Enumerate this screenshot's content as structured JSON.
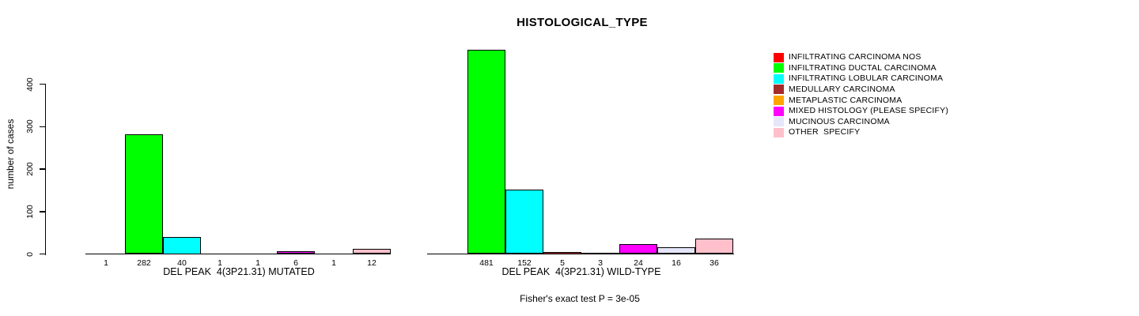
{
  "title": "HISTOLOGICAL_TYPE",
  "chart_data": {
    "type": "bar",
    "title": "HISTOLOGICAL_TYPE",
    "ylabel": "number of cases",
    "ylim": [
      0,
      400
    ],
    "yticks": [
      0,
      100,
      200,
      300,
      400
    ],
    "grid": false,
    "legend_position": "right",
    "categories": [
      "INFILTRATING CARCINOMA NOS",
      "INFILTRATING DUCTAL CARCINOMA",
      "INFILTRATING LOBULAR CARCINOMA",
      "MEDULLARY CARCINOMA",
      "METAPLASTIC CARCINOMA",
      "MIXED HISTOLOGY (PLEASE SPECIFY)",
      "MUCINOUS CARCINOMA",
      "OTHER  SPECIFY"
    ],
    "series": [
      {
        "name": "DEL PEAK  4(3P21.31) MUTATED",
        "values": [
          1,
          282,
          40,
          1,
          1,
          6,
          1,
          12
        ]
      },
      {
        "name": "DEL PEAK  4(3P21.31) WILD-TYPE",
        "values": [
          null,
          481,
          152,
          5,
          3,
          24,
          16,
          36
        ]
      }
    ],
    "colors": [
      "#FF0000",
      "#00FF00",
      "#00FFFF",
      "#A52A2A",
      "#FFA500",
      "#FF00FF",
      "#E6E6FA",
      "#FFC0CB"
    ],
    "annotation": "Fisher's exact test P = 3e-05"
  },
  "legend": {
    "items": [
      {
        "label": "INFILTRATING CARCINOMA NOS",
        "color": "#FF0000"
      },
      {
        "label": "INFILTRATING DUCTAL CARCINOMA",
        "color": "#00FF00"
      },
      {
        "label": "INFILTRATING LOBULAR CARCINOMA",
        "color": "#00FFFF"
      },
      {
        "label": "MEDULLARY CARCINOMA",
        "color": "#A52A2A"
      },
      {
        "label": "METAPLASTIC CARCINOMA",
        "color": "#FFA500"
      },
      {
        "label": "MIXED HISTOLOGY (PLEASE SPECIFY)",
        "color": "#FF00FF"
      },
      {
        "label": "MUCINOUS CARCINOMA",
        "color": "#E6E6FA"
      },
      {
        "label": "OTHER  SPECIFY",
        "color": "#FFC0CB"
      }
    ]
  }
}
